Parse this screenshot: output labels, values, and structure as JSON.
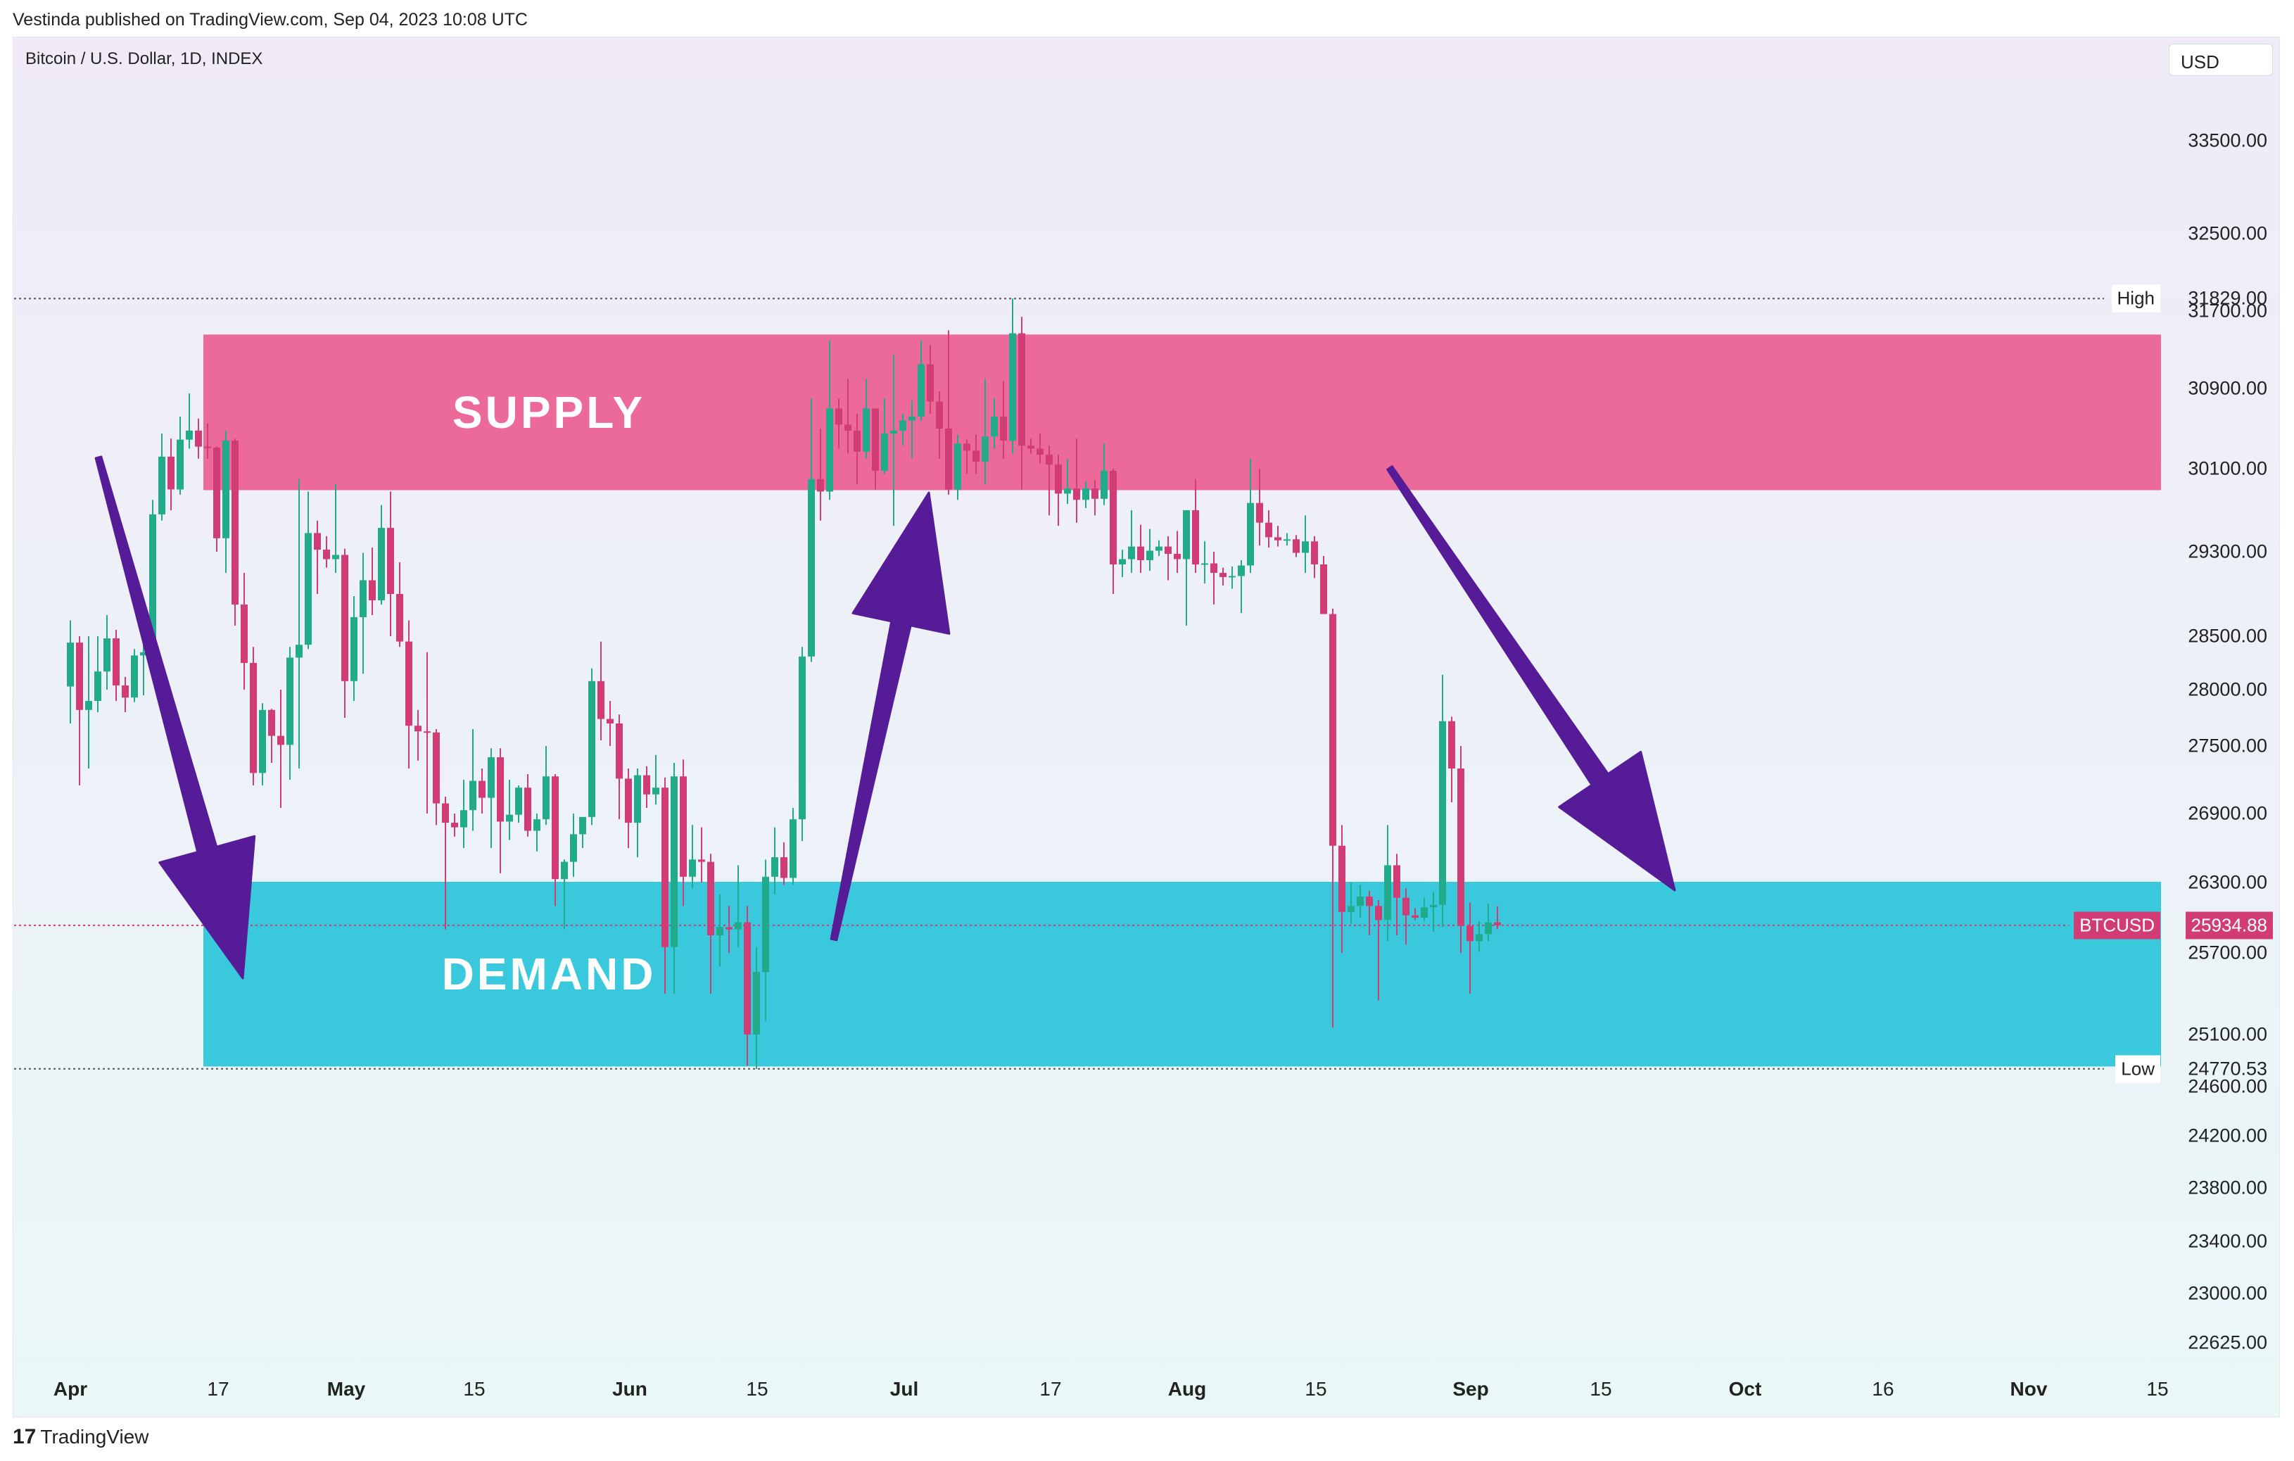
{
  "header": {
    "published_line": "Vestinda published on TradingView.com, Sep 04, 2023 10:08 UTC"
  },
  "symbol_title": "Bitcoin / U.S. Dollar, 1D, INDEX",
  "currency_button": "USD",
  "branding": {
    "logo_text": "TradingView",
    "logo_glyph": "17"
  },
  "colors": {
    "up": "#22ab8b",
    "down": "#d23c74",
    "supply_zone": "#ec6a99",
    "demand_zone": "#3ac8dc",
    "arrow": "#561c98",
    "price_tag": "#d23c74"
  },
  "chart_data": {
    "type": "candlestick",
    "title": "Bitcoin / U.S. Dollar, 1D, INDEX",
    "price_axis": {
      "ticks": [
        "33500.00",
        "32500.00",
        "31700.00",
        "30900.00",
        "30100.00",
        "29300.00",
        "28500.00",
        "28000.00",
        "27500.00",
        "26900.00",
        "26300.00",
        "25700.00",
        "25100.00",
        "24600.00",
        "24200.00",
        "23800.00",
        "23400.00",
        "23000.00",
        "22625.00"
      ],
      "ylim": [
        22400,
        33900
      ]
    },
    "time_axis": {
      "labels": [
        {
          "text": "Apr",
          "bold": true
        },
        {
          "text": "17",
          "bold": false
        },
        {
          "text": "May",
          "bold": true
        },
        {
          "text": "15",
          "bold": false
        },
        {
          "text": "Jun",
          "bold": true
        },
        {
          "text": "15",
          "bold": false
        },
        {
          "text": "Jul",
          "bold": true
        },
        {
          "text": "17",
          "bold": false
        },
        {
          "text": "Aug",
          "bold": true
        },
        {
          "text": "15",
          "bold": false
        },
        {
          "text": "Sep",
          "bold": true
        },
        {
          "text": "15",
          "bold": false
        },
        {
          "text": "Oct",
          "bold": true
        },
        {
          "text": "16",
          "bold": false
        },
        {
          "text": "Nov",
          "bold": true
        },
        {
          "text": "15",
          "bold": false
        }
      ]
    },
    "high": {
      "label": "High",
      "value": "31829.00"
    },
    "low": {
      "label": "Low",
      "value": "24770.53"
    },
    "last_price": {
      "symbol": "BTCUSD",
      "value": "25934.88"
    },
    "zones": [
      {
        "name": "SUPPLY",
        "from": 29900,
        "to": 31450,
        "start": "Apr 11",
        "end": "Nov 15"
      },
      {
        "name": "DEMAND",
        "from": 24800,
        "to": 26300,
        "start": "Apr 11",
        "end": "Nov 15"
      }
    ],
    "candles": [
      [
        "Apr 01",
        28030,
        28650,
        27700,
        28440
      ],
      [
        "Apr 02",
        28440,
        28500,
        27150,
        27820
      ],
      [
        "Apr 03",
        27820,
        28500,
        27300,
        27900
      ],
      [
        "Apr 04",
        27900,
        28500,
        27800,
        28170
      ],
      [
        "Apr 05",
        28170,
        28700,
        28000,
        28480
      ],
      [
        "Apr 06",
        28480,
        28560,
        27900,
        28040
      ],
      [
        "Apr 07",
        28040,
        28120,
        27800,
        27930
      ],
      [
        "Apr 08",
        27930,
        28380,
        27890,
        28320
      ],
      [
        "Apr 09",
        28320,
        28500,
        27950,
        28350
      ],
      [
        "Apr 10",
        28350,
        29800,
        28200,
        29660
      ],
      [
        "Apr 11",
        29660,
        30450,
        29600,
        30220
      ],
      [
        "Apr 12",
        30220,
        30400,
        29700,
        29900
      ],
      [
        "Apr 13",
        29900,
        30620,
        29850,
        30390
      ],
      [
        "Apr 14",
        30390,
        30850,
        30300,
        30480
      ],
      [
        "Apr 15",
        30480,
        30600,
        30200,
        30320
      ],
      [
        "Apr 16",
        30320,
        30550,
        30200,
        30310
      ],
      [
        "Apr 17",
        30310,
        30320,
        29300,
        29430
      ],
      [
        "Apr 18",
        29430,
        30480,
        29100,
        30380
      ],
      [
        "Apr 19",
        30380,
        30400,
        28600,
        28800
      ],
      [
        "Apr 20",
        28800,
        29100,
        28000,
        28250
      ],
      [
        "Apr 21",
        28250,
        28400,
        27150,
        27260
      ],
      [
        "Apr 22",
        27260,
        27880,
        27150,
        27820
      ],
      [
        "Apr 23",
        27820,
        27830,
        27350,
        27590
      ],
      [
        "Apr 24",
        27590,
        28000,
        26950,
        27510
      ],
      [
        "Apr 25",
        27510,
        28400,
        27200,
        28300
      ],
      [
        "Apr 26",
        28300,
        30000,
        27300,
        28420
      ],
      [
        "Apr 27",
        28420,
        29880,
        28380,
        29480
      ],
      [
        "Apr 28",
        29480,
        29600,
        28900,
        29320
      ],
      [
        "Apr 29",
        29320,
        29450,
        29150,
        29230
      ],
      [
        "Apr 30",
        29230,
        29950,
        29100,
        29270
      ],
      [
        "May 01",
        29270,
        29330,
        27750,
        28080
      ],
      [
        "May 02",
        28080,
        28880,
        27900,
        28680
      ],
      [
        "May 03",
        28680,
        29290,
        28150,
        29030
      ],
      [
        "May 04",
        29030,
        29340,
        28700,
        28840
      ],
      [
        "May 05",
        28840,
        29750,
        28800,
        29530
      ],
      [
        "May 06",
        29530,
        29880,
        28500,
        28900
      ],
      [
        "May 07",
        28900,
        29200,
        28400,
        28450
      ],
      [
        "May 08",
        28450,
        28650,
        27300,
        27680
      ],
      [
        "May 09",
        27680,
        27820,
        27370,
        27630
      ],
      [
        "May 10",
        27630,
        28350,
        26900,
        27620
      ],
      [
        "May 11",
        27620,
        27650,
        26800,
        26990
      ],
      [
        "May 12",
        26990,
        27050,
        25900,
        26820
      ],
      [
        "May 13",
        26820,
        26900,
        26700,
        26780
      ],
      [
        "May 14",
        26780,
        27200,
        26600,
        26930
      ],
      [
        "May 15",
        26930,
        27650,
        26750,
        27190
      ],
      [
        "May 16",
        27190,
        27300,
        26900,
        27040
      ],
      [
        "May 17",
        27040,
        27480,
        26600,
        27400
      ],
      [
        "May 18",
        27400,
        27480,
        26380,
        26830
      ],
      [
        "May 19",
        26830,
        27200,
        26670,
        26890
      ],
      [
        "May 20",
        26890,
        27150,
        26820,
        27130
      ],
      [
        "May 21",
        27130,
        27250,
        26700,
        26750
      ],
      [
        "May 22",
        26750,
        26900,
        26570,
        26850
      ],
      [
        "May 23",
        26850,
        27500,
        26800,
        27230
      ],
      [
        "May 24",
        27230,
        27250,
        26100,
        26330
      ],
      [
        "May 25",
        26330,
        26500,
        25900,
        26480
      ],
      [
        "May 26",
        26480,
        26900,
        26350,
        26720
      ],
      [
        "May 27",
        26720,
        26850,
        26600,
        26870
      ],
      [
        "May 28",
        26870,
        28200,
        26800,
        28080
      ],
      [
        "May 29",
        28080,
        28450,
        27550,
        27740
      ],
      [
        "May 30",
        27740,
        27900,
        27500,
        27700
      ],
      [
        "May 31",
        27700,
        27780,
        26850,
        27210
      ],
      [
        "Jun 01",
        27210,
        27300,
        26600,
        26820
      ],
      [
        "Jun 02",
        26820,
        27300,
        26520,
        27240
      ],
      [
        "Jun 03",
        27240,
        27320,
        26950,
        27070
      ],
      [
        "Jun 04",
        27070,
        27420,
        26980,
        27130
      ],
      [
        "Jun 05",
        27130,
        27220,
        25400,
        25750
      ],
      [
        "Jun 06",
        25750,
        27350,
        25400,
        27230
      ],
      [
        "Jun 07",
        27230,
        27380,
        26100,
        26350
      ],
      [
        "Jun 08",
        26350,
        26800,
        26250,
        26500
      ],
      [
        "Jun 09",
        26500,
        26780,
        26300,
        26480
      ],
      [
        "Jun 10",
        26480,
        26550,
        25400,
        25850
      ],
      [
        "Jun 11",
        25850,
        26200,
        25600,
        25920
      ],
      [
        "Jun 12",
        25920,
        26100,
        25700,
        25900
      ],
      [
        "Jun 13",
        25900,
        26450,
        25750,
        25960
      ],
      [
        "Jun 14",
        25960,
        26100,
        24800,
        25100
      ],
      [
        "Jun 15",
        25100,
        25750,
        24770,
        25560
      ],
      [
        "Jun 16",
        25560,
        26500,
        25200,
        26350
      ],
      [
        "Jun 17",
        26350,
        26780,
        26200,
        26520
      ],
      [
        "Jun 18",
        26520,
        26650,
        26280,
        26340
      ],
      [
        "Jun 19",
        26340,
        26950,
        26280,
        26850
      ],
      [
        "Jun 20",
        26850,
        28400,
        26660,
        28310
      ],
      [
        "Jun 21",
        28310,
        30800,
        28260,
        30000
      ],
      [
        "Jun 22",
        30000,
        30500,
        29600,
        29880
      ],
      [
        "Jun 23",
        29880,
        31400,
        29800,
        30700
      ],
      [
        "Jun 24",
        30700,
        30800,
        30300,
        30540
      ],
      [
        "Jun 25",
        30540,
        31000,
        30250,
        30480
      ],
      [
        "Jun 26",
        30480,
        30650,
        29950,
        30270
      ],
      [
        "Jun 27",
        30270,
        31000,
        30200,
        30700
      ],
      [
        "Jun 28",
        30700,
        30700,
        29900,
        30080
      ],
      [
        "Jun 29",
        30080,
        30800,
        30050,
        30450
      ],
      [
        "Jun 30",
        30450,
        31250,
        29550,
        30480
      ],
      [
        "Jul 01",
        30480,
        30650,
        30330,
        30580
      ],
      [
        "Jul 02",
        30580,
        30780,
        30200,
        30620
      ],
      [
        "Jul 03",
        30620,
        31400,
        30580,
        31150
      ],
      [
        "Jul 04",
        31150,
        31350,
        30650,
        30770
      ],
      [
        "Jul 05",
        30770,
        30870,
        30200,
        30500
      ],
      [
        "Jul 06",
        30500,
        31500,
        29850,
        29900
      ],
      [
        "Jul 07",
        29900,
        30440,
        29800,
        30350
      ],
      [
        "Jul 08",
        30350,
        30390,
        30050,
        30280
      ],
      [
        "Jul 09",
        30280,
        30440,
        30050,
        30170
      ],
      [
        "Jul 10",
        30170,
        31000,
        29950,
        30420
      ],
      [
        "Jul 11",
        30420,
        30800,
        30300,
        30620
      ],
      [
        "Jul 12",
        30620,
        30980,
        30200,
        30380
      ],
      [
        "Jul 13",
        30380,
        31829,
        30250,
        31470
      ],
      [
        "Jul 14",
        31470,
        31640,
        29900,
        30330
      ],
      [
        "Jul 15",
        30330,
        30400,
        30250,
        30300
      ],
      [
        "Jul 16",
        30300,
        30450,
        30150,
        30240
      ],
      [
        "Jul 17",
        30240,
        30330,
        29650,
        30140
      ],
      [
        "Jul 18",
        30140,
        30240,
        29550,
        29860
      ],
      [
        "Jul 19",
        29860,
        30200,
        29760,
        29910
      ],
      [
        "Jul 20",
        29910,
        30400,
        29580,
        29800
      ],
      [
        "Jul 21",
        29800,
        29980,
        29720,
        29910
      ],
      [
        "Jul 22",
        29910,
        29990,
        29650,
        29810
      ],
      [
        "Jul 23",
        29810,
        30350,
        29750,
        30080
      ],
      [
        "Jul 24",
        30080,
        30100,
        28900,
        29180
      ],
      [
        "Jul 25",
        29180,
        29320,
        29060,
        29230
      ],
      [
        "Jul 26",
        29230,
        29700,
        29100,
        29350
      ],
      [
        "Jul 27",
        29350,
        29560,
        29100,
        29220
      ],
      [
        "Jul 28",
        29220,
        29520,
        29120,
        29310
      ],
      [
        "Jul 29",
        29310,
        29410,
        29260,
        29350
      ],
      [
        "Jul 30",
        29350,
        29450,
        29030,
        29280
      ],
      [
        "Jul 31",
        29280,
        29500,
        29100,
        29230
      ],
      [
        "Aug 01",
        29230,
        29700,
        28600,
        29700
      ],
      [
        "Aug 02",
        29700,
        30000,
        29100,
        29180
      ],
      [
        "Aug 03",
        29180,
        29400,
        29000,
        29190
      ],
      [
        "Aug 04",
        29190,
        29300,
        28800,
        29100
      ],
      [
        "Aug 05",
        29100,
        29150,
        28980,
        29060
      ],
      [
        "Aug 06",
        29060,
        29160,
        28950,
        29070
      ],
      [
        "Aug 07",
        29070,
        29220,
        28720,
        29170
      ],
      [
        "Aug 08",
        29170,
        30200,
        29100,
        29770
      ],
      [
        "Aug 09",
        29770,
        30100,
        29360,
        29580
      ],
      [
        "Aug 10",
        29580,
        29700,
        29340,
        29440
      ],
      [
        "Aug 11",
        29440,
        29550,
        29350,
        29410
      ],
      [
        "Aug 12",
        29410,
        29480,
        29360,
        29420
      ],
      [
        "Aug 13",
        29420,
        29460,
        29250,
        29290
      ],
      [
        "Aug 14",
        29290,
        29650,
        29100,
        29400
      ],
      [
        "Aug 15",
        29400,
        29450,
        29050,
        29180
      ],
      [
        "Aug 16",
        29180,
        29260,
        28750,
        28710
      ],
      [
        "Aug 17",
        28710,
        28760,
        25150,
        26620
      ],
      [
        "Aug 18",
        26620,
        26800,
        25700,
        26050
      ],
      [
        "Aug 19",
        26050,
        26300,
        25950,
        26100
      ],
      [
        "Aug 20",
        26100,
        26280,
        26000,
        26180
      ],
      [
        "Aug 21",
        26180,
        26230,
        25850,
        26100
      ],
      [
        "Aug 22",
        26100,
        26150,
        25350,
        25980
      ],
      [
        "Aug 23",
        25980,
        26800,
        25800,
        26450
      ],
      [
        "Aug 24",
        26450,
        26550,
        25850,
        26170
      ],
      [
        "Aug 25",
        26170,
        26250,
        25770,
        26020
      ],
      [
        "Aug 26",
        26020,
        26080,
        25980,
        26000
      ],
      [
        "Aug 27",
        26000,
        26170,
        25970,
        26090
      ],
      [
        "Aug 28",
        26090,
        26220,
        25880,
        26110
      ],
      [
        "Aug 29",
        26110,
        28140,
        25920,
        27720
      ],
      [
        "Aug 30",
        27720,
        27760,
        27000,
        27300
      ],
      [
        "Aug 31",
        27300,
        27500,
        25700,
        25930
      ],
      [
        "Sep 01",
        25930,
        26130,
        25400,
        25800
      ],
      [
        "Sep 02",
        25800,
        25970,
        25710,
        25860
      ],
      [
        "Sep 03",
        25860,
        26120,
        25800,
        25960
      ],
      [
        "Sep 04",
        25960,
        26100,
        25900,
        25935
      ]
    ]
  }
}
